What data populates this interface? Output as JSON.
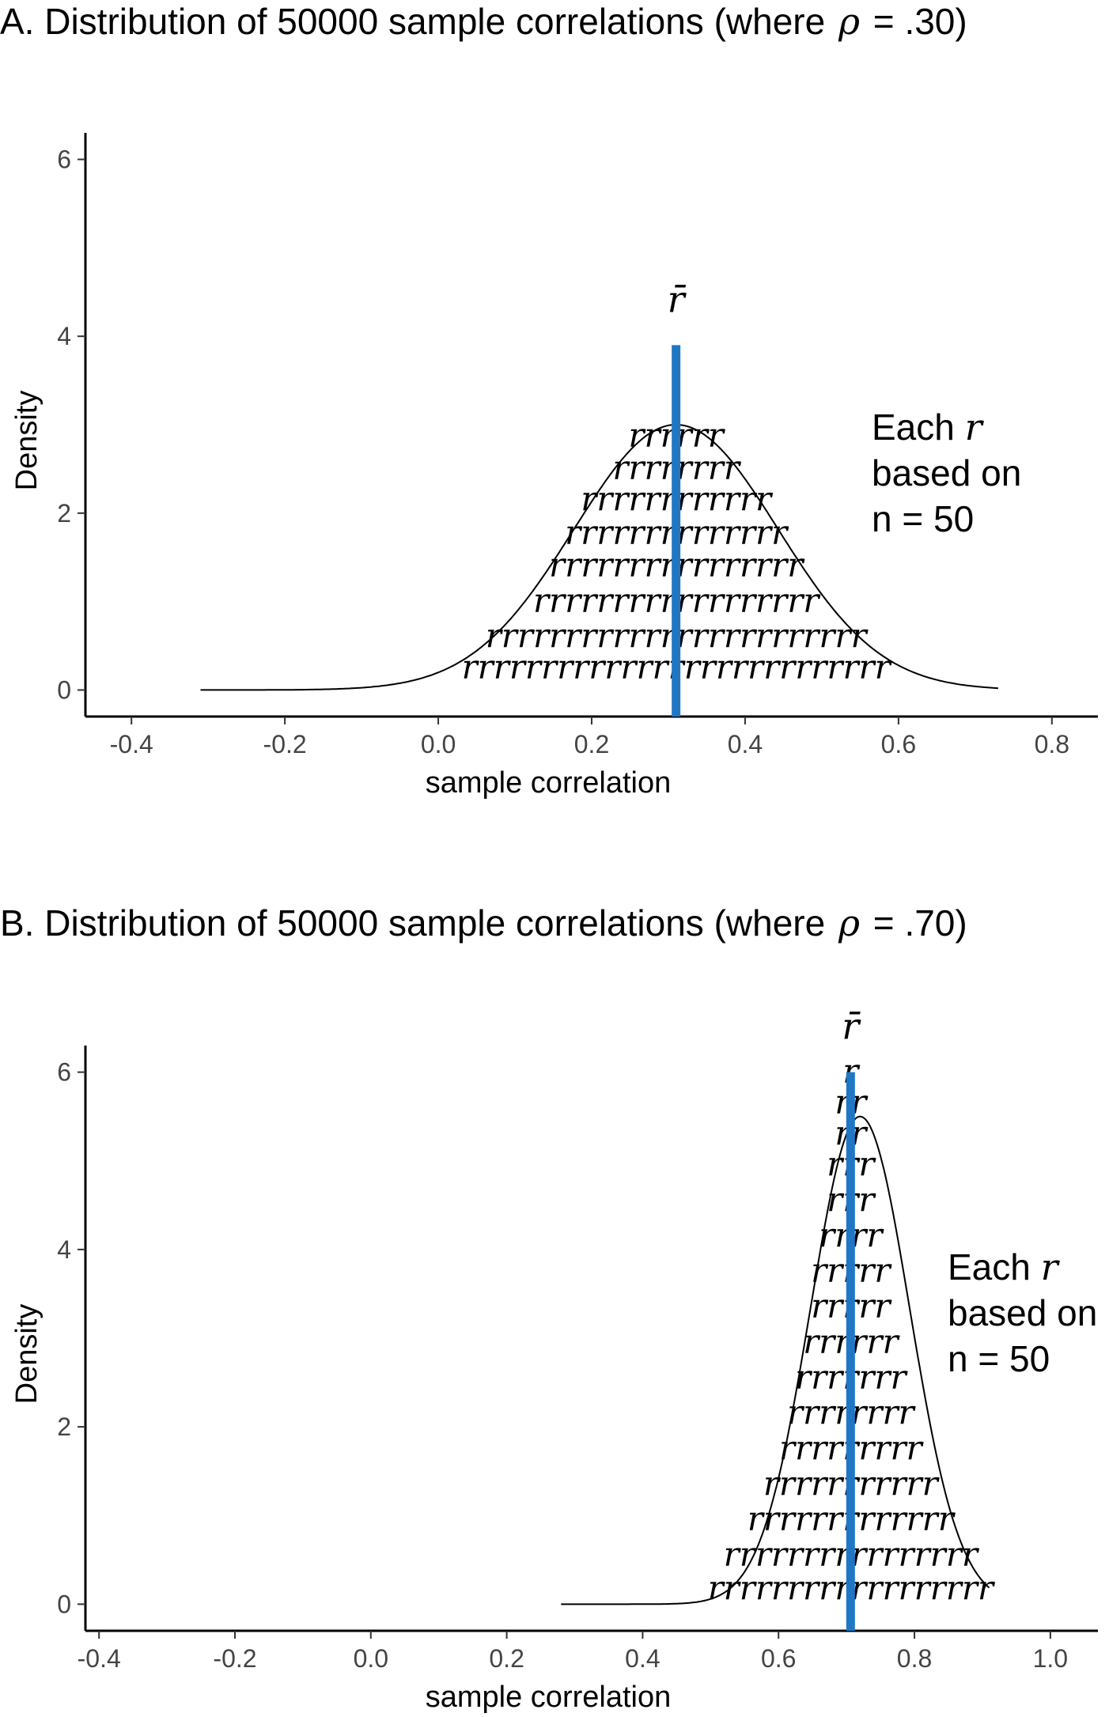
{
  "chart_data": [
    {
      "type": "area",
      "title_prefix": "A. Distribution of 50000 sample correlations (where",
      "title_symbol": "ρ",
      "title_suffix": "= .30)",
      "xlabel": "sample correlation",
      "ylabel": "Density",
      "xlim": [
        -0.46,
        0.86
      ],
      "ylim": [
        -0.3,
        6.3
      ],
      "xticks": [
        -0.4,
        -0.2,
        0.0,
        0.2,
        0.4,
        0.6,
        0.8
      ],
      "xtick_labels": [
        "-0.4",
        "-0.2",
        "0.0",
        "0.2",
        "0.4",
        "0.6",
        "0.8"
      ],
      "yticks": [
        0,
        2,
        4,
        6
      ],
      "ytick_labels": [
        "0",
        "2",
        "4",
        "6"
      ],
      "density": {
        "mean": 0.31,
        "sd": 0.133,
        "peak": 3.0,
        "x_range": [
          -0.31,
          0.73
        ]
      },
      "mean_line": {
        "x": 0.31,
        "y_top": 3.9,
        "color": "#1f77c4"
      },
      "mean_label": "r̄",
      "r_rows": [
        {
          "text": "rrrrrrrrrrrrrrrrrrrrrrrrrrr",
          "y": 0.1
        },
        {
          "text": "rrrrrrrrrrrrrrrrrrrrrrrr",
          "y": 0.45
        },
        {
          "text": "rrrrrrrrrrrrrrrrrr",
          "y": 0.85
        },
        {
          "text": "rrrrrrrrrrrrrrrr",
          "y": 1.25
        },
        {
          "text": "rrrrrrrrrrrrrr",
          "y": 1.62
        },
        {
          "text": "rrrrrrrrrrrr",
          "y": 2.0
        },
        {
          "text": "rrrrrrrr",
          "y": 2.35
        },
        {
          "text": "rrrrrr",
          "y": 2.72
        }
      ],
      "note": {
        "line1_prefix": "Each",
        "line1_symbol": "r",
        "line2": "based on",
        "line3": "n = 50"
      }
    },
    {
      "type": "area",
      "title_prefix": "B. Distribution of 50000 sample correlations (where",
      "title_symbol": "ρ",
      "title_suffix": "= .70)",
      "xlabel": "sample correlation",
      "ylabel": "Density",
      "xlim": [
        -0.42,
        1.07
      ],
      "ylim": [
        -0.3,
        6.3
      ],
      "xticks": [
        -0.4,
        -0.2,
        0.0,
        0.2,
        0.4,
        0.6,
        0.8,
        1.0
      ],
      "xtick_labels": [
        "-0.4",
        "-0.2",
        "0.0",
        "0.2",
        "0.4",
        "0.6",
        "0.8",
        "1.0"
      ],
      "yticks": [
        0,
        2,
        4,
        6
      ],
      "ytick_labels": [
        "0",
        "2",
        "4",
        "6"
      ],
      "density": {
        "mean": 0.72,
        "sd": 0.073,
        "peak": 5.5,
        "x_range": [
          0.28,
          0.91
        ]
      },
      "mean_line": {
        "x": 0.706,
        "y_top": 6.0,
        "color": "#1f77c4"
      },
      "mean_label": "r̄",
      "r_rows": [
        {
          "text": "rrrrrrrrrrrrrrrrrr",
          "y": 0.02
        },
        {
          "text": "rrrrrrrrrrrrrrrr",
          "y": 0.4
        },
        {
          "text": "rrrrrrrrrrrrr",
          "y": 0.8
        },
        {
          "text": "rrrrrrrrrrr",
          "y": 1.2
        },
        {
          "text": "rrrrrrrrr",
          "y": 1.6
        },
        {
          "text": "rrrrrrrr",
          "y": 2.0
        },
        {
          "text": "rrrrrrr",
          "y": 2.4
        },
        {
          "text": "rrrrrr",
          "y": 2.8
        },
        {
          "text": "rrrrr",
          "y": 3.2
        },
        {
          "text": "rrrrr",
          "y": 3.6
        },
        {
          "text": "rrrr",
          "y": 4.0
        },
        {
          "text": "rrr",
          "y": 4.4
        },
        {
          "text": "rrr",
          "y": 4.8
        },
        {
          "text": "rr",
          "y": 5.15
        },
        {
          "text": "rr",
          "y": 5.5
        },
        {
          "text": "r",
          "y": 5.85
        }
      ],
      "note": {
        "line1_prefix": "Each",
        "line1_symbol": "r",
        "line2": "based on",
        "line3": "n = 50"
      }
    }
  ]
}
